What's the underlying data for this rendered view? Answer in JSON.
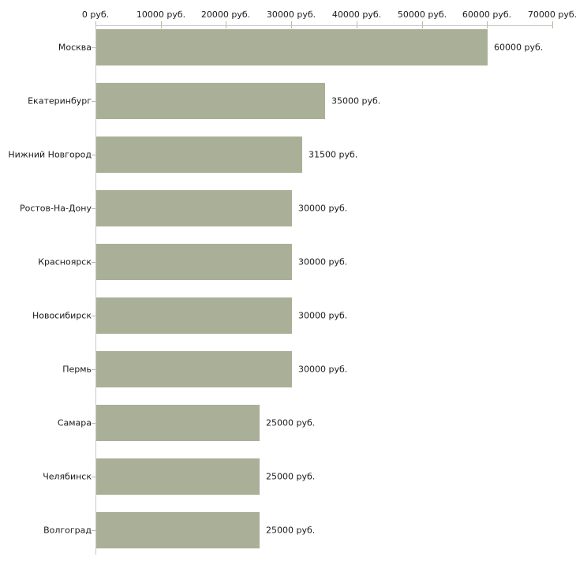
{
  "chart_data": {
    "type": "bar",
    "orientation": "horizontal",
    "title": "",
    "xlabel": "",
    "ylabel": "",
    "unit": "руб.",
    "grid": "off",
    "legend": "none",
    "xlim": [
      0,
      70000
    ],
    "x_tick_values": [
      0,
      10000,
      20000,
      30000,
      40000,
      50000,
      60000,
      70000
    ],
    "x_tick_labels": [
      "0 руб.",
      "10000 руб.",
      "20000 руб.",
      "30000 руб.",
      "40000 руб.",
      "50000 руб.",
      "60000 руб.",
      "70000 руб."
    ],
    "categories": [
      "Москва",
      "Екатеринбург",
      "Нижний Новгород",
      "Ростов-На-Дону",
      "Красноярск",
      "Новосибирск",
      "Пермь",
      "Самара",
      "Челябинск",
      "Волгоград"
    ],
    "values": [
      60000,
      35000,
      31500,
      30000,
      30000,
      30000,
      30000,
      25000,
      25000,
      25000
    ],
    "value_labels": [
      "60000 руб.",
      "35000 руб.",
      "31500 руб.",
      "30000 руб.",
      "30000 руб.",
      "30000 руб.",
      "30000 руб.",
      "25000 руб.",
      "25000 руб.",
      "25000 руб."
    ]
  },
  "colors": {
    "bar_fill": "#aab097",
    "axis_line": "#c9c9c9",
    "tick_mark": "#b8ba94",
    "text": "#1a1a1a",
    "background": "#ffffff"
  }
}
